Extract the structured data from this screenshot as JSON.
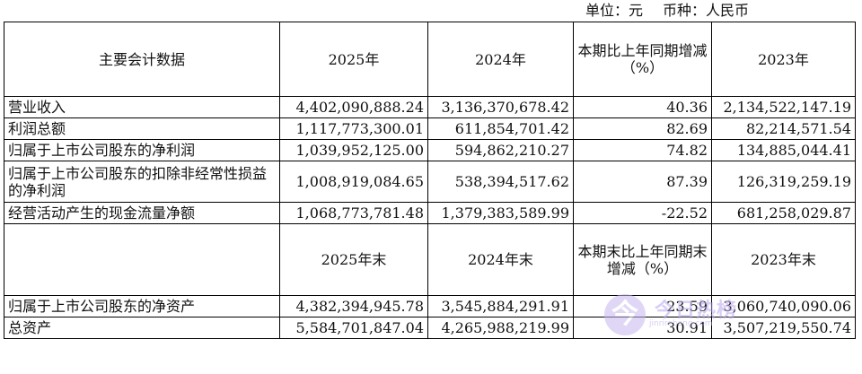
{
  "unit": {
    "unit_label": "单位：元",
    "currency_label": "币种：人民币"
  },
  "header1": {
    "col1": "主要会计数据",
    "col2": "2025年",
    "col3": "2024年",
    "col4": "本期比上年同期增减（%）",
    "col5": "2023年"
  },
  "rows1": [
    {
      "label": "营业收入",
      "y2025": "4,402,090,888.24",
      "y2024": "3,136,370,678.42",
      "change": "40.36",
      "y2023": "2,134,522,147.19"
    },
    {
      "label": "利润总额",
      "y2025": "1,117,773,300.01",
      "y2024": "611,854,701.42",
      "change": "82.69",
      "y2023": "82,214,571.54"
    },
    {
      "label": "归属于上市公司股东的净利润",
      "y2025": "1,039,952,125.00",
      "y2024": "594,862,210.27",
      "change": "74.82",
      "y2023": "134,885,044.41"
    },
    {
      "label": "归属于上市公司股东的扣除非经常性损益的净利润",
      "y2025": "1,008,919,084.65",
      "y2024": "538,394,517.62",
      "change": "87.39",
      "y2023": "126,319,259.19"
    },
    {
      "label": "经营活动产生的现金流量净额",
      "y2025": "1,068,773,781.48",
      "y2024": "1,379,383,589.99",
      "change": "-22.52",
      "y2023": "681,258,029.87"
    }
  ],
  "header2": {
    "col1": "",
    "col2": "2025年末",
    "col3": "2024年末",
    "col4": "本期末比上年同期末增减（%）",
    "col5": "2023年末"
  },
  "rows2": [
    {
      "label": "归属于上市公司股东的净资产",
      "y2025": "4,382,394,945.78",
      "y2024": "3,545,884,291.91",
      "change": "23.59",
      "y2023": "3,060,740,090.06"
    },
    {
      "label": "总资产",
      "y2025": "5,584,701,847.04",
      "y2024": "4,265,988,219.99",
      "change": "30.91",
      "y2023": "3,507,219,550.74"
    }
  ],
  "watermark": {
    "badge": "今",
    "text": "今日热榜",
    "sub": "jinrirebang.com"
  }
}
